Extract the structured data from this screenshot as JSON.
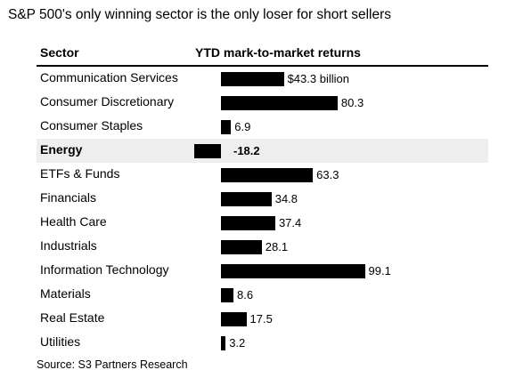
{
  "title": "S&P 500's only winning sector is the only loser for short sellers",
  "source": "Source: S3 Partners Research",
  "colors": {
    "bar": "#000000",
    "highlight_row": "#eeeeee"
  },
  "chart_data": {
    "type": "bar",
    "orientation": "horizontal",
    "column_headers": {
      "category": "Sector",
      "value": "YTD mark-to-market returns"
    },
    "categories": [
      "Communication Services",
      "Consumer Discretionary",
      "Consumer Staples",
      "Energy",
      "ETFs & Funds",
      "Financials",
      "Health Care",
      "Industrials",
      "Information Technology",
      "Materials",
      "Real Estate",
      "Utilities"
    ],
    "values": [
      43.3,
      80.3,
      6.9,
      -18.2,
      63.3,
      34.8,
      37.4,
      28.1,
      99.1,
      8.6,
      17.5,
      3.2
    ],
    "value_labels": [
      "$43.3 billion",
      "80.3",
      "6.9",
      "-18.2",
      "63.3",
      "34.8",
      "37.4",
      "28.1",
      "99.1",
      "8.6",
      "17.5",
      "3.2"
    ],
    "unit": "billion USD",
    "highlighted_category": "Energy",
    "grid": false,
    "legend": "none"
  }
}
